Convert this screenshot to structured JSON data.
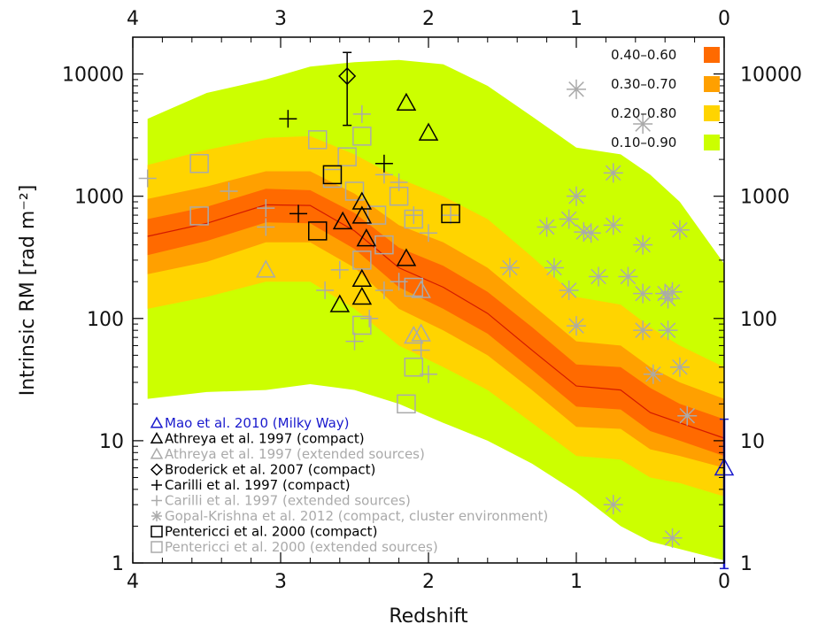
{
  "chart_data": {
    "type": "area",
    "xlabel": "Redshift",
    "ylabel": "Intrinsic RM [rad m⁻²]",
    "xlim": [
      4,
      0
    ],
    "ylim": [
      1,
      20000
    ],
    "y_scale": "log",
    "x_ticks": [
      "4",
      "3",
      "2",
      "1",
      "0"
    ],
    "x_tick_values": [
      4,
      3,
      2,
      1,
      0
    ],
    "top_x_ticks": [
      "4",
      "3",
      "2",
      "1",
      "0"
    ],
    "y_ticks": [
      "1",
      "10",
      "100",
      "1000",
      "10000"
    ],
    "y_tick_values": [
      1,
      10,
      100,
      1000,
      10000
    ],
    "model_z": [
      3.9,
      3.5,
      3.1,
      2.8,
      2.5,
      2.2,
      1.9,
      1.6,
      1.3,
      1.0,
      0.7,
      0.5,
      0.3,
      0.0
    ],
    "median": [
      470,
      600,
      850,
      840,
      520,
      260,
      180,
      110,
      55,
      28,
      26,
      17,
      14,
      10.5
    ],
    "bands": [
      {
        "name": "0.10–0.90",
        "color": "#ccff00",
        "upper": [
          4300,
          7000,
          9000,
          11500,
          12500,
          13000,
          12000,
          8000,
          4500,
          2500,
          2200,
          1500,
          900,
          280
        ],
        "lower": [
          22,
          25,
          26,
          29,
          26,
          20,
          14,
          10,
          6.5,
          3.8,
          2.0,
          1.5,
          1.3,
          1.05
        ]
      },
      {
        "name": "0.20–0.80",
        "color": "#ffd400",
        "upper": [
          1800,
          2400,
          3000,
          3100,
          2200,
          1400,
          1000,
          650,
          320,
          150,
          130,
          85,
          60,
          40
        ],
        "lower": [
          120,
          150,
          200,
          200,
          120,
          60,
          40,
          26,
          14,
          7.5,
          7.0,
          5.0,
          4.5,
          3.5
        ]
      },
      {
        "name": "0.30–0.70",
        "color": "#ffa000",
        "upper": [
          950,
          1200,
          1600,
          1600,
          1050,
          580,
          420,
          260,
          130,
          65,
          60,
          40,
          30,
          22
        ],
        "lower": [
          230,
          290,
          420,
          420,
          260,
          120,
          80,
          50,
          26,
          13,
          12.5,
          8.5,
          7.5,
          6
        ]
      },
      {
        "name": "0.40–0.60",
        "color": "#ff6a00",
        "upper": [
          650,
          820,
          1150,
          1120,
          730,
          380,
          270,
          165,
          85,
          42,
          40,
          27,
          20,
          15
        ],
        "lower": [
          330,
          430,
          610,
          600,
          370,
          180,
          120,
          75,
          38,
          19,
          18,
          12,
          10,
          7.5
        ]
      }
    ],
    "band_legend_order": [
      "0.40–0.60",
      "0.30–0.70",
      "0.20–0.80",
      "0.10–0.90"
    ],
    "legend_placement": "top-right",
    "series_legend_placement": "bottom-left",
    "series": [
      {
        "name": "Mao et al. 2010 (Milky Way)",
        "color": "#1a1acd",
        "marker": "triangle",
        "points": [
          [
            0.0,
            6
          ]
        ],
        "error": [
          [
            0.0,
            0.9,
            15
          ]
        ]
      },
      {
        "name": "Athreya et al. 1997 (compact)",
        "color": "#000000",
        "marker": "triangle",
        "points": [
          [
            2.15,
            5800
          ],
          [
            2.0,
            3300
          ],
          [
            2.45,
            900
          ],
          [
            2.45,
            690
          ],
          [
            2.58,
            620
          ],
          [
            2.42,
            450
          ],
          [
            2.15,
            310
          ],
          [
            2.45,
            210
          ],
          [
            2.45,
            150
          ],
          [
            2.6,
            130
          ]
        ]
      },
      {
        "name": "Athreya et al. 1997 (extended sources)",
        "color": "#aaaaaa",
        "marker": "triangle",
        "points": [
          [
            3.1,
            250
          ],
          [
            2.05,
            170
          ],
          [
            2.05,
            75
          ],
          [
            2.1,
            72
          ]
        ]
      },
      {
        "name": "Broderick et al. 2007 (compact)",
        "color": "#000000",
        "marker": "diamond",
        "points": [
          [
            2.55,
            9600
          ]
        ],
        "error": [
          [
            2.55,
            3800,
            15000
          ]
        ]
      },
      {
        "name": "Carilli et al. 1997 (compact)",
        "color": "#000000",
        "marker": "plus",
        "points": [
          [
            2.95,
            4300
          ],
          [
            2.3,
            1850
          ],
          [
            2.88,
            720
          ]
        ]
      },
      {
        "name": "Carilli et al. 1997 (extended sources)",
        "color": "#aaaaaa",
        "marker": "plus",
        "points": [
          [
            3.9,
            1400
          ],
          [
            3.35,
            1100
          ],
          [
            3.1,
            800
          ],
          [
            3.1,
            560
          ],
          [
            2.45,
            4700
          ],
          [
            2.3,
            1500
          ],
          [
            2.2,
            1300
          ],
          [
            2.1,
            700
          ],
          [
            2.0,
            500
          ],
          [
            1.85,
            700
          ],
          [
            2.7,
            170
          ],
          [
            2.6,
            250
          ],
          [
            2.3,
            170
          ],
          [
            2.2,
            200
          ],
          [
            2.4,
            100
          ],
          [
            2.5,
            65
          ],
          [
            2.05,
            55
          ],
          [
            2.0,
            35
          ]
        ]
      },
      {
        "name": "Gopal-Krishna et al. 2012 (compact, cluster environment)",
        "color": "#aaaaaa",
        "marker": "asterisk",
        "points": [
          [
            1.0,
            7500
          ],
          [
            0.55,
            3900
          ],
          [
            0.75,
            1550
          ],
          [
            1.0,
            1000
          ],
          [
            1.05,
            650
          ],
          [
            1.2,
            560
          ],
          [
            0.9,
            500
          ],
          [
            0.75,
            580
          ],
          [
            0.55,
            400
          ],
          [
            0.3,
            530
          ],
          [
            1.45,
            260
          ],
          [
            1.15,
            260
          ],
          [
            0.95,
            510
          ],
          [
            0.85,
            220
          ],
          [
            1.05,
            170
          ],
          [
            0.65,
            220
          ],
          [
            0.55,
            160
          ],
          [
            0.4,
            160
          ],
          [
            0.35,
            165
          ],
          [
            0.38,
            145
          ],
          [
            1.0,
            87
          ],
          [
            0.55,
            80
          ],
          [
            0.38,
            80
          ],
          [
            0.3,
            40
          ],
          [
            0.48,
            35
          ],
          [
            0.25,
            16
          ],
          [
            0.75,
            3
          ],
          [
            0.35,
            1.6
          ]
        ]
      },
      {
        "name": "Pentericci et al. 2000 (compact)",
        "color": "#000000",
        "marker": "square",
        "points": [
          [
            2.65,
            1500
          ],
          [
            1.85,
            720
          ],
          [
            2.75,
            520
          ]
        ]
      },
      {
        "name": "Pentericci et al. 2000 (extended sources)",
        "color": "#aaaaaa",
        "marker": "square",
        "points": [
          [
            3.55,
            1850
          ],
          [
            3.55,
            690
          ],
          [
            2.75,
            2900
          ],
          [
            2.45,
            3100
          ],
          [
            2.55,
            2100
          ],
          [
            2.65,
            1400
          ],
          [
            2.5,
            1100
          ],
          [
            2.35,
            700
          ],
          [
            2.2,
            1000
          ],
          [
            2.1,
            650
          ],
          [
            2.45,
            300
          ],
          [
            2.3,
            400
          ],
          [
            2.1,
            180
          ],
          [
            2.45,
            88
          ],
          [
            2.1,
            40
          ],
          [
            2.15,
            20
          ]
        ]
      }
    ],
    "grid": false
  }
}
